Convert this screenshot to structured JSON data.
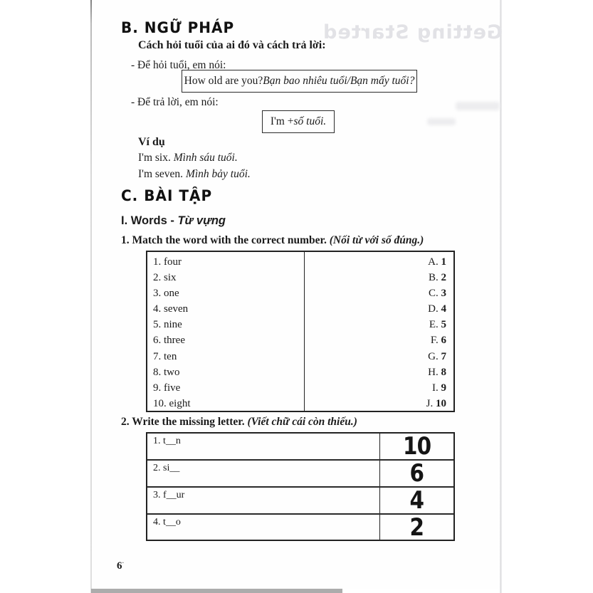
{
  "colors": {
    "text": "#1b1b1b",
    "table_border": "#222222",
    "watermark": "#e2e2e6",
    "page_edge": "#9d9d9d"
  },
  "page": {
    "number": "6",
    "watermark_bleed_text": "Getting Started"
  },
  "section_b": {
    "heading": "B. NGỮ PHÁP",
    "intro": "Cách hỏi tuổi của ai đó và cách trả lời:",
    "ask_label": "- Để hỏi tuổi, em nói:",
    "ask_box_en": "How old are you? ",
    "ask_box_vi": "Bạn bao nhiêu tuổi/Bạn mấy tuổi?",
    "answer_label": "- Để trả lời, em nói:",
    "answer_box_en": "I'm + ",
    "answer_box_vi": "số tuổi.",
    "example_heading": "Ví dụ",
    "examples": [
      {
        "en": "I'm six. ",
        "vi": "Mình sáu tuổi."
      },
      {
        "en": "I'm seven. ",
        "vi": "Mình bảy tuổi."
      }
    ]
  },
  "section_c": {
    "heading": "C. BÀI TẬP",
    "subheading_en": "I. Words - ",
    "subheading_vi": "Từ vựng",
    "ex1": {
      "title_en": "1. Match the word with the correct number. ",
      "title_vi": "(Nối từ với số đúng.)",
      "rows": [
        {
          "word": "1. four",
          "letter": "A.",
          "number": "1"
        },
        {
          "word": "2. six",
          "letter": "B.",
          "number": "2"
        },
        {
          "word": "3. one",
          "letter": "C.",
          "number": "3"
        },
        {
          "word": "4. seven",
          "letter": "D.",
          "number": "4"
        },
        {
          "word": "5. nine",
          "letter": "E.",
          "number": "5"
        },
        {
          "word": "6. three",
          "letter": "F.",
          "number": "6"
        },
        {
          "word": "7. ten",
          "letter": "G.",
          "number": "7"
        },
        {
          "word": "8. two",
          "letter": "H.",
          "number": "8"
        },
        {
          "word": "9. five",
          "letter": "I.",
          "number": "9"
        },
        {
          "word": "10. eight",
          "letter": "J.",
          "number": "10"
        }
      ]
    },
    "ex2": {
      "title_en": "2. Write the missing letter. ",
      "title_vi": "(Viết chữ cái còn thiếu.)",
      "rows": [
        {
          "item": "1. t__n",
          "answer": "10"
        },
        {
          "item": "2. si__",
          "answer": "6"
        },
        {
          "item": "3. f__ur",
          "answer": "4"
        },
        {
          "item": "4. t__o",
          "answer": "2"
        }
      ]
    }
  }
}
